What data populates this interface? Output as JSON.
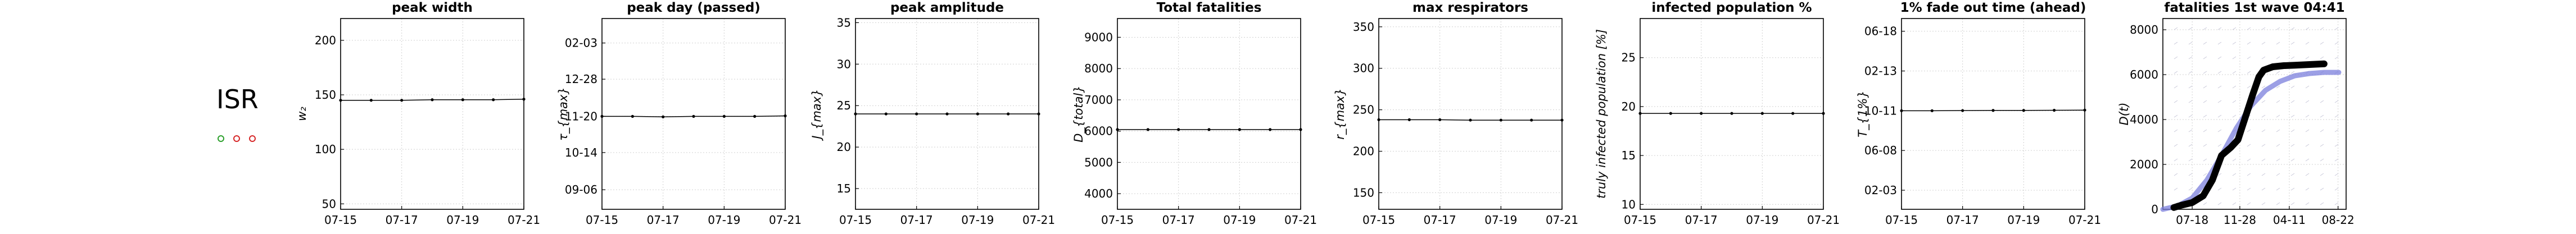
{
  "country": "ISR",
  "indicator_dots": [
    {
      "color": "#2ca02c"
    },
    {
      "color": "#d62728"
    },
    {
      "color": "#d62728"
    }
  ],
  "chart_data": [
    {
      "type": "line",
      "title": "peak width",
      "ylabel": "w₂",
      "xtick_labels": [
        "07-15",
        "07-17",
        "07-19",
        "07-21"
      ],
      "ytick_labels": [
        "50",
        "100",
        "150",
        "200"
      ],
      "ytick_values": [
        50,
        100,
        150,
        200
      ],
      "ylim": [
        45,
        220
      ],
      "grid": true,
      "x": [
        "07-15",
        "07-16",
        "07-17",
        "07-18",
        "07-19",
        "07-20",
        "07-21"
      ],
      "y": [
        145,
        145,
        145,
        145.5,
        145.5,
        145.5,
        146
      ]
    },
    {
      "type": "line",
      "title": "peak day (passed)",
      "ylabel": "τ_{max}",
      "xtick_labels": [
        "07-15",
        "07-17",
        "07-19",
        "07-21"
      ],
      "ytick_labels": [
        "09-06",
        "10-14",
        "11-20",
        "12-28",
        "02-03"
      ],
      "ytick_values": [
        0,
        38,
        75,
        113,
        150
      ],
      "ylim": [
        -20,
        175
      ],
      "grid": true,
      "x": [
        "07-15",
        "07-16",
        "07-17",
        "07-18",
        "07-19",
        "07-20",
        "07-21"
      ],
      "y": [
        75,
        75,
        74.5,
        75,
        75,
        75,
        75.5
      ]
    },
    {
      "type": "line",
      "title": "peak amplitude",
      "ylabel": "J_{max}",
      "xtick_labels": [
        "07-15",
        "07-17",
        "07-19",
        "07-21"
      ],
      "ytick_labels": [
        "15",
        "20",
        "25",
        "30",
        "35"
      ],
      "ytick_values": [
        15,
        20,
        25,
        30,
        35
      ],
      "ylim": [
        12.5,
        35.5
      ],
      "grid": true,
      "x": [
        "07-15",
        "07-16",
        "07-17",
        "07-18",
        "07-19",
        "07-20",
        "07-21"
      ],
      "y": [
        24,
        24,
        24,
        24,
        24,
        24,
        24
      ]
    },
    {
      "type": "line",
      "title": "Total fatalities",
      "ylabel": "D_{total}",
      "xtick_labels": [
        "07-15",
        "07-17",
        "07-19",
        "07-21"
      ],
      "ytick_labels": [
        "4000",
        "5000",
        "6000",
        "7000",
        "8000",
        "9000"
      ],
      "ytick_values": [
        4000,
        5000,
        6000,
        7000,
        8000,
        9000
      ],
      "ylim": [
        3500,
        9600
      ],
      "grid": true,
      "x": [
        "07-15",
        "07-16",
        "07-17",
        "07-18",
        "07-19",
        "07-20",
        "07-21"
      ],
      "y": [
        6050,
        6050,
        6050,
        6050,
        6050,
        6050,
        6050
      ]
    },
    {
      "type": "line",
      "title": "max respirators",
      "ylabel": "r_{max}",
      "xtick_labels": [
        "07-15",
        "07-17",
        "07-19",
        "07-21"
      ],
      "ytick_labels": [
        "150",
        "200",
        "250",
        "300",
        "350"
      ],
      "ytick_values": [
        150,
        200,
        250,
        300,
        350
      ],
      "ylim": [
        130,
        360
      ],
      "grid": true,
      "x": [
        "07-15",
        "07-16",
        "07-17",
        "07-18",
        "07-19",
        "07-20",
        "07-21"
      ],
      "y": [
        238,
        238,
        238,
        237.5,
        237.5,
        237.5,
        237.5
      ]
    },
    {
      "type": "line",
      "title": "infected population %",
      "ylabel": "truly infected population [%]",
      "xtick_labels": [
        "07-15",
        "07-17",
        "07-19",
        "07-21"
      ],
      "ytick_labels": [
        "10",
        "15",
        "20",
        "25"
      ],
      "ytick_values": [
        10,
        15,
        20,
        25
      ],
      "ylim": [
        9.5,
        29
      ],
      "grid": true,
      "x": [
        "07-15",
        "07-16",
        "07-17",
        "07-18",
        "07-19",
        "07-20",
        "07-21"
      ],
      "y": [
        19.3,
        19.3,
        19.3,
        19.3,
        19.3,
        19.3,
        19.3
      ]
    },
    {
      "type": "line",
      "title": "1% fade out time (ahead)",
      "ylabel": "T_{1%}",
      "xtick_labels": [
        "07-15",
        "07-17",
        "07-19",
        "07-21"
      ],
      "ytick_labels": [
        "02-03",
        "06-08",
        "10-11",
        "02-13",
        "06-18"
      ],
      "ytick_values": [
        0,
        125,
        250,
        375,
        500
      ],
      "ylim": [
        -60,
        540
      ],
      "grid": true,
      "x": [
        "07-15",
        "07-16",
        "07-17",
        "07-18",
        "07-19",
        "07-20",
        "07-21"
      ],
      "y": [
        250,
        250,
        250.5,
        251,
        251,
        251.5,
        252
      ]
    },
    {
      "type": "line",
      "title": "fatalities 1st wave 04:41",
      "ylabel": "D(t)",
      "xtick_labels": [
        "07-18",
        "11-28",
        "04-11",
        "08-22"
      ],
      "xtick_values": [
        80,
        210,
        345,
        478
      ],
      "ytick_labels": [
        "0",
        "2000",
        "4000",
        "6000",
        "8000"
      ],
      "ytick_values": [
        0,
        2000,
        4000,
        6000,
        8000
      ],
      "ylim": [
        0,
        8500
      ],
      "xlim": [
        0,
        500
      ],
      "grid": true,
      "series": [
        {
          "color": "#7b7fdc",
          "x": [
            0,
            40,
            80,
            120,
            160,
            200,
            240,
            280,
            320,
            360,
            400,
            440,
            480
          ],
          "y": [
            0,
            150,
            500,
            1300,
            2400,
            3600,
            4600,
            5300,
            5700,
            5950,
            6050,
            6100,
            6100
          ]
        },
        {
          "color": "#000000",
          "x": [
            30,
            50,
            80,
            110,
            135,
            160,
            185,
            205,
            225,
            245,
            262,
            275,
            300,
            330,
            360,
            400,
            440
          ],
          "y": [
            80,
            180,
            300,
            600,
            1300,
            2400,
            2750,
            3100,
            4100,
            5100,
            5900,
            6200,
            6350,
            6400,
            6420,
            6450,
            6480
          ]
        }
      ]
    }
  ]
}
